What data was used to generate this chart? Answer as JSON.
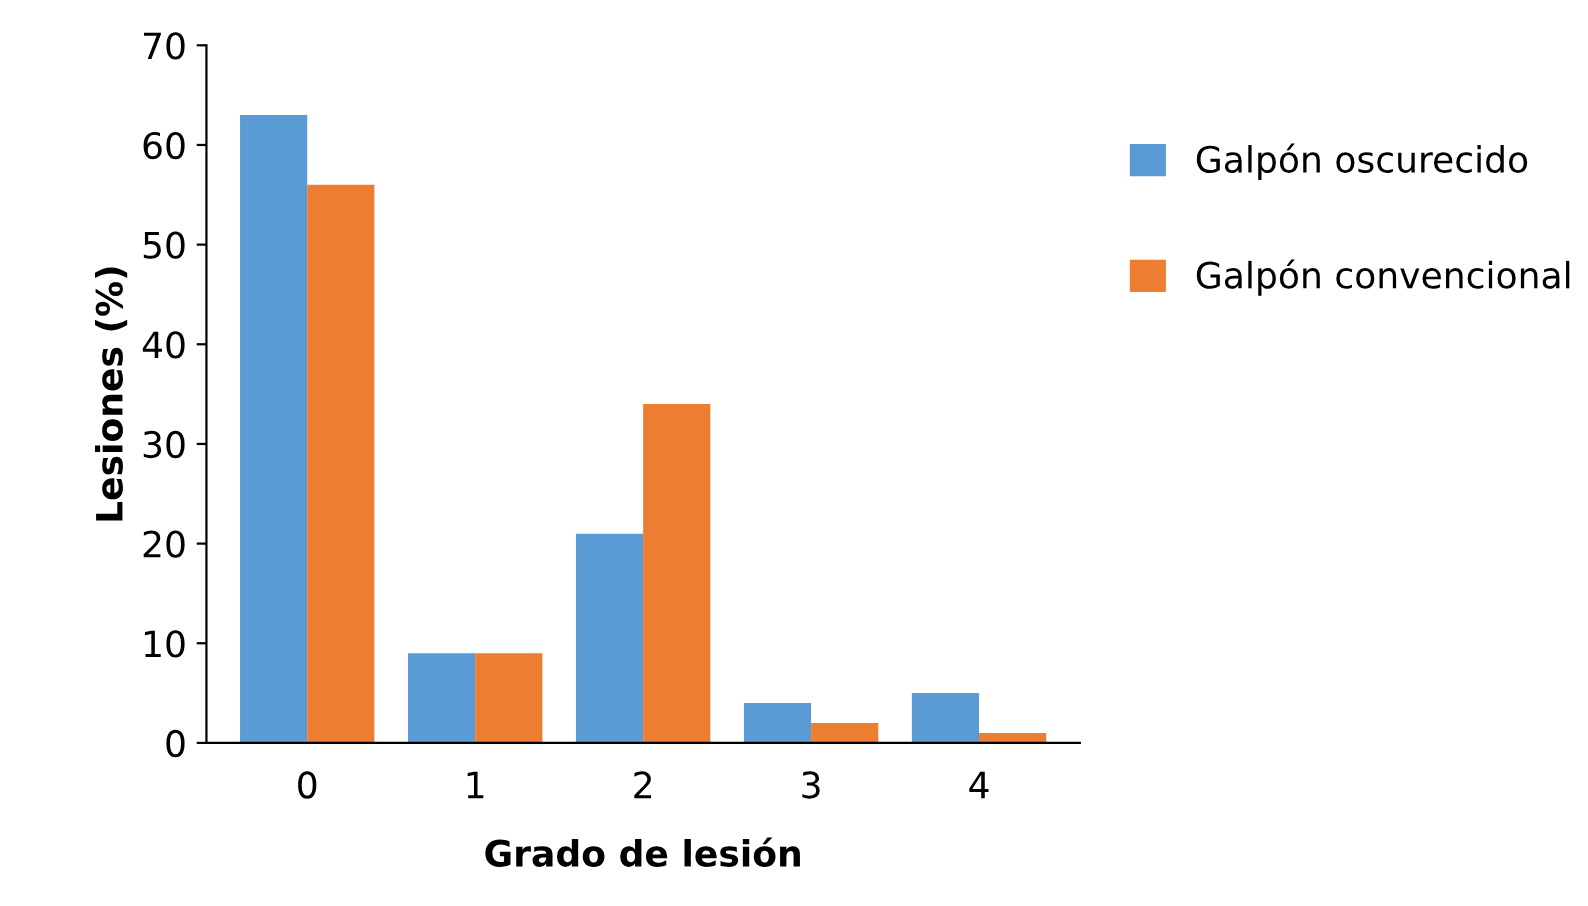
{
  "chart_data": {
    "type": "bar",
    "xlabel": "Grado de lesión",
    "ylabel": "Lesiones (%)",
    "categories": [
      "0",
      "1",
      "2",
      "3",
      "4"
    ],
    "series": [
      {
        "name": "Galpón oscurecido",
        "color": "#5b9bd5",
        "values": [
          63,
          9,
          21,
          4,
          5
        ]
      },
      {
        "name": "Galpón convencional",
        "color": "#ed7d31",
        "values": [
          56,
          9,
          34,
          2,
          1
        ]
      }
    ],
    "ylim": [
      0,
      70
    ],
    "yticks": [
      0,
      10,
      20,
      30,
      40,
      50,
      60,
      70
    ],
    "grid": false,
    "legend": "right"
  }
}
